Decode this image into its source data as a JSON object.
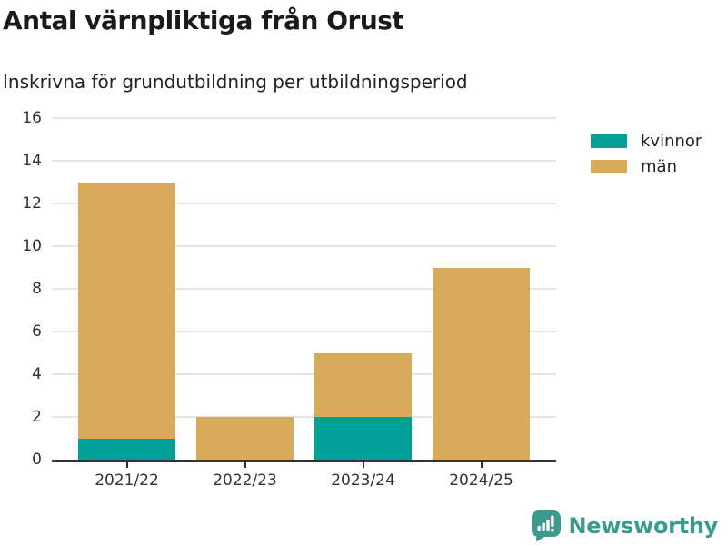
{
  "header": {
    "title": "Antal värnpliktiga från Orust",
    "subtitle": "Inskrivna för grundutbildning per utbildningsperiod"
  },
  "chart_data": {
    "type": "bar",
    "stacked": true,
    "title": "Antal värnpliktiga från Orust",
    "subtitle": "Inskrivna för grundutbildning per utbildningsperiod",
    "xlabel": "",
    "ylabel": "",
    "categories": [
      "2021/22",
      "2022/23",
      "2023/24",
      "2024/25"
    ],
    "series": [
      {
        "name": "kvinnor",
        "color": "#00a096",
        "values": [
          1,
          0,
          2,
          0
        ]
      },
      {
        "name": "män",
        "color": "#d8ab5a",
        "values": [
          12,
          2,
          3,
          9
        ]
      }
    ],
    "totals": [
      13,
      2,
      5,
      9
    ],
    "ylim": [
      0,
      16
    ],
    "yticks": [
      0,
      2,
      4,
      6,
      8,
      10,
      12,
      14,
      16
    ],
    "grid": true,
    "gridline_color": "#e5e5e5",
    "axis_color": "#333333",
    "legend_position": "top-right"
  },
  "legend": {
    "items": [
      {
        "label": "kvinnor",
        "color": "#00a096"
      },
      {
        "label": "män",
        "color": "#d8ab5a"
      }
    ]
  },
  "footer": {
    "brand": "Newsworthy",
    "brand_color": "#3c9a8d",
    "logo_icon": "bar-chart-speech-bubble-icon"
  }
}
